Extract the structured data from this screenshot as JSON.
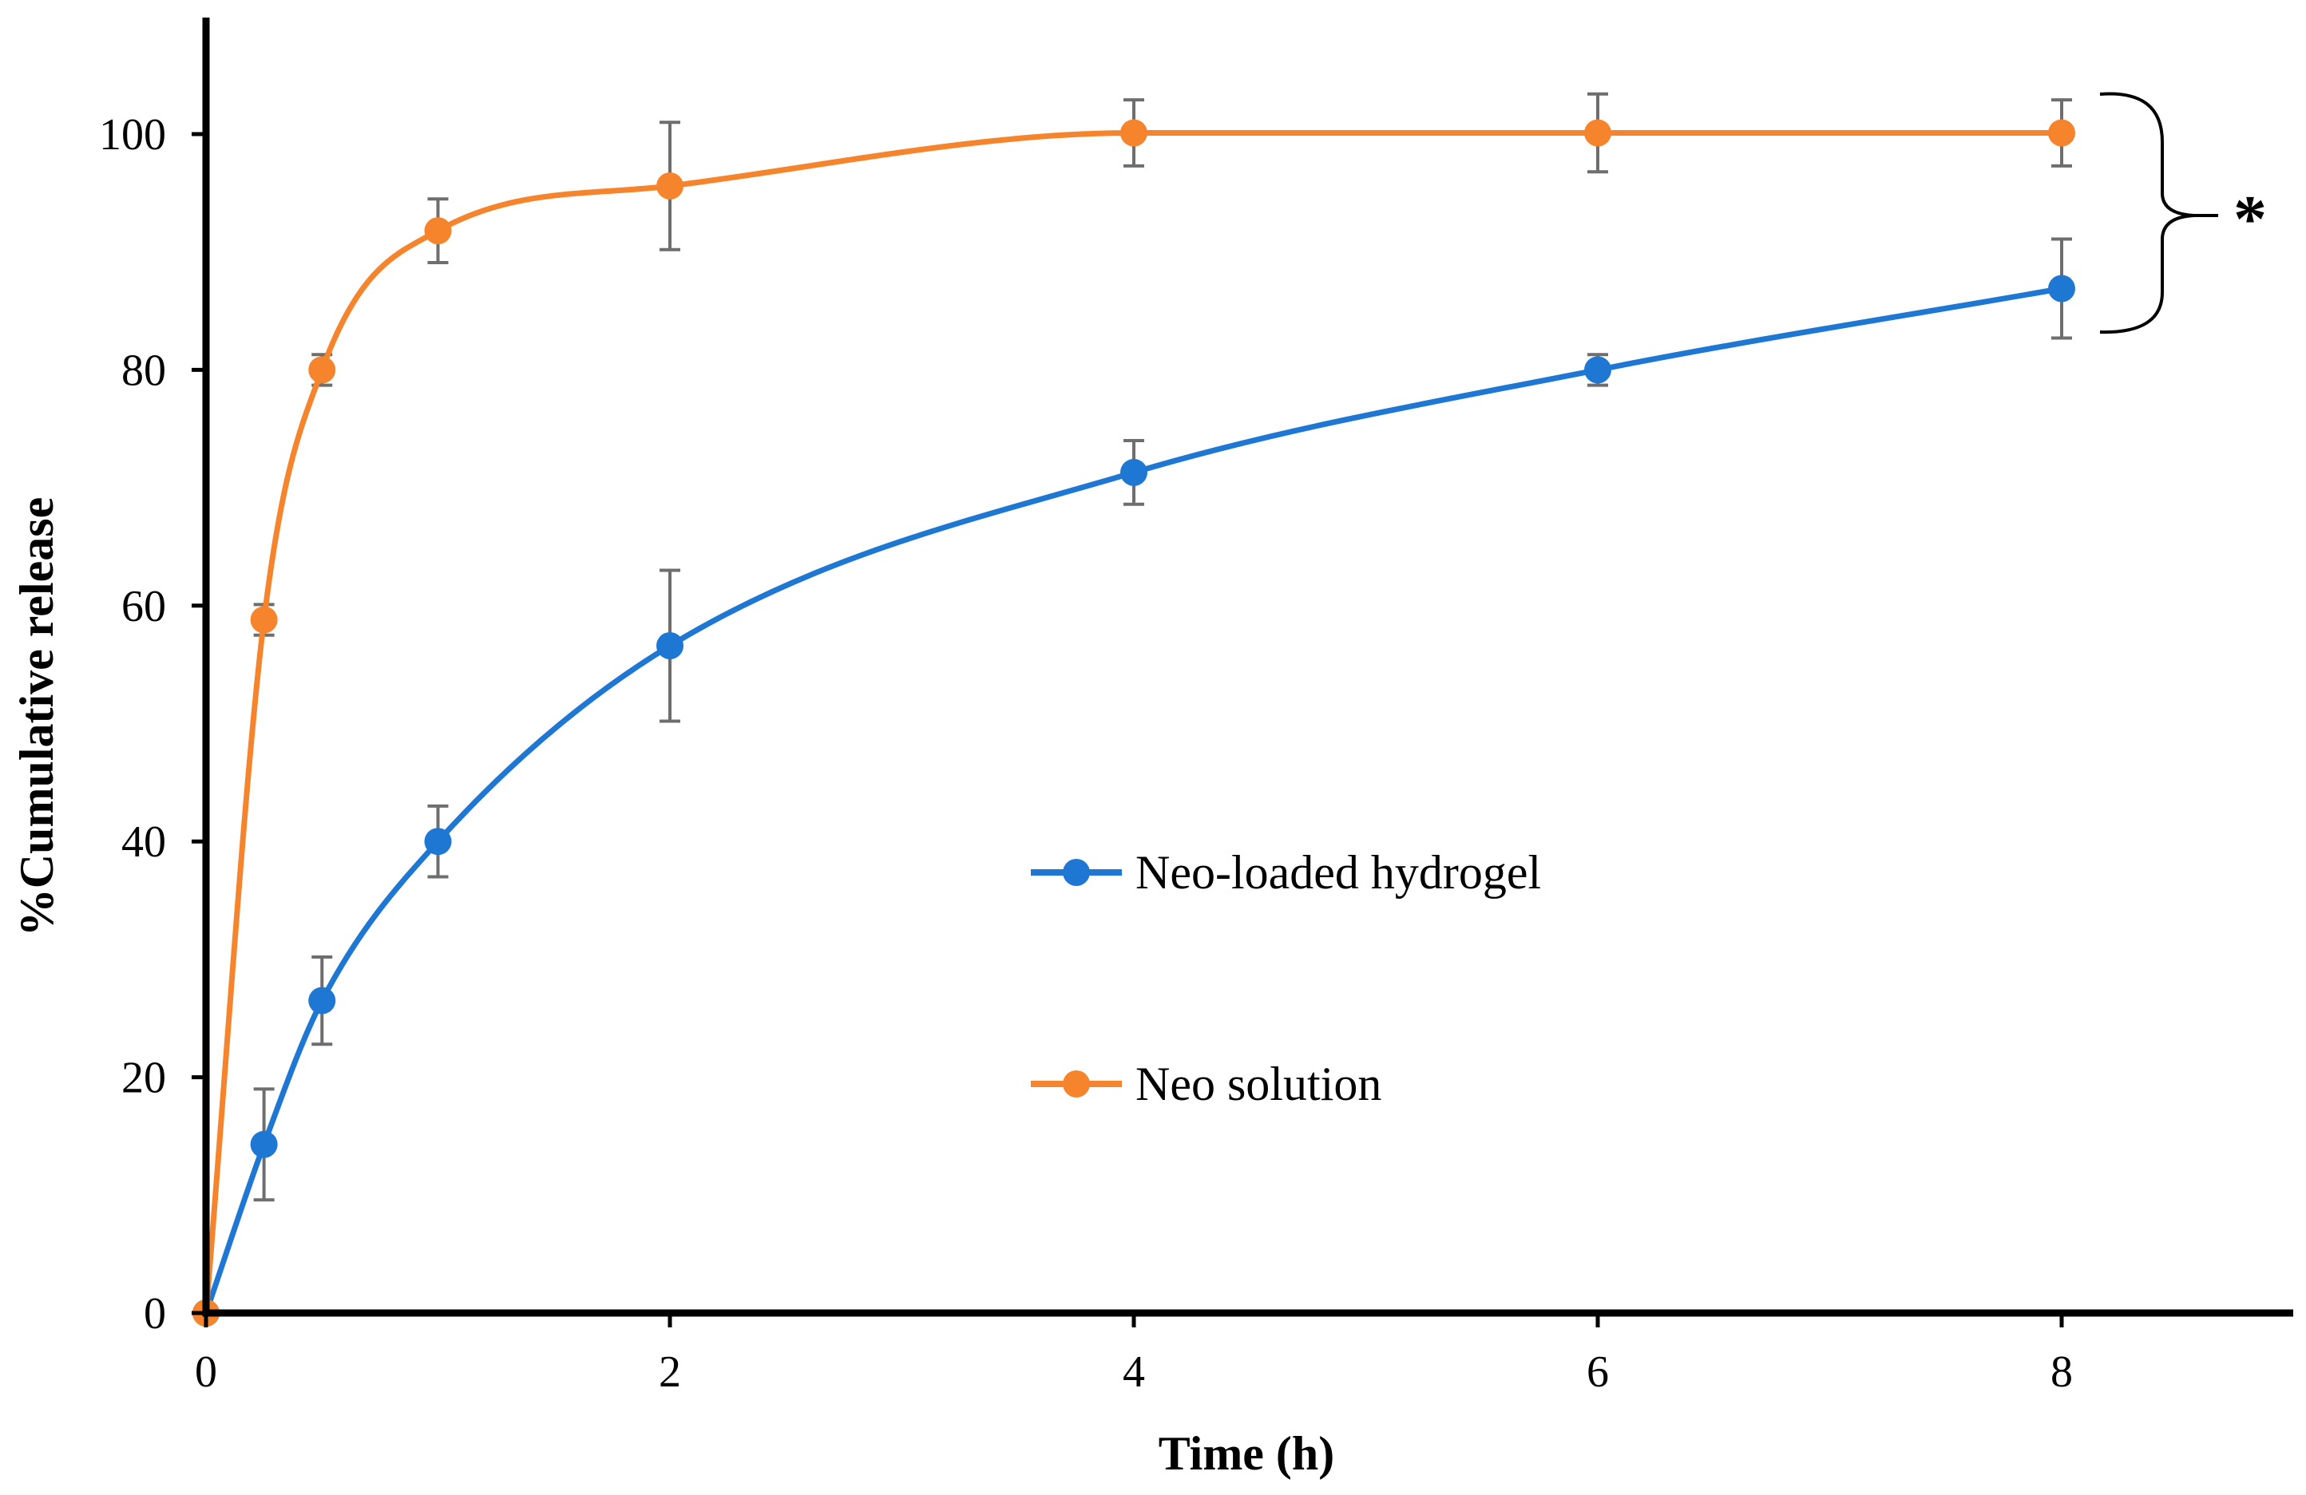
{
  "chart_data": {
    "type": "line",
    "title": "",
    "xlabel": "Time (h)",
    "ylabel": "%Cumulative release",
    "xlim": [
      0,
      9
    ],
    "ylim": [
      0,
      110
    ],
    "xticks": [
      0,
      2,
      4,
      6,
      8
    ],
    "yticks": [
      0,
      20,
      40,
      60,
      80,
      100
    ],
    "grid": false,
    "legend_position": "center-right",
    "significance_label": "*",
    "series": [
      {
        "name": "Neo-loaded hydrogel",
        "color": "#1f77d4",
        "x": [
          0,
          0.25,
          0.5,
          1,
          2,
          4,
          6,
          8
        ],
        "y": [
          0,
          14.3,
          26.5,
          40,
          56.6,
          71.3,
          80,
          86.9
        ],
        "err": [
          0,
          4.7,
          3.7,
          3,
          6.4,
          2.7,
          1.3,
          4.2
        ]
      },
      {
        "name": "Neo solution",
        "color": "#f5842c",
        "x": [
          0,
          0.25,
          0.5,
          1,
          2,
          4,
          6,
          8
        ],
        "y": [
          0,
          58.8,
          80,
          91.8,
          95.6,
          100.1,
          100.1,
          100.1
        ],
        "err": [
          0,
          1.3,
          1.3,
          2.7,
          5.4,
          2.8,
          3.3,
          2.8
        ]
      }
    ]
  }
}
